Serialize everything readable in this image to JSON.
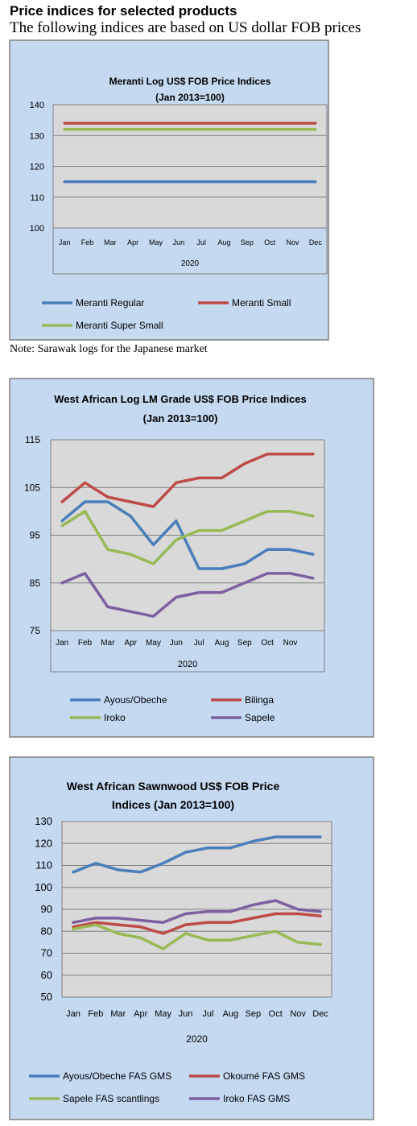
{
  "page": {
    "heading": "Price indices for selected products",
    "subheading": "The following indices are based on US dollar FOB prices",
    "note": "Note: Sarawak logs for the Japanese market"
  },
  "chart_data": [
    {
      "type": "line",
      "title": "Meranti Log US$ FOB Price Indices",
      "subtitle": "(Jan 2013=100)",
      "xlabel": "2020",
      "ylabel": "",
      "categories": [
        "Jan",
        "Feb",
        "Mar",
        "Apr",
        "May",
        "Jun",
        "Jul",
        "Aug",
        "Sep",
        "Oct",
        "Nov",
        "Dec"
      ],
      "ylim": [
        100,
        140
      ],
      "yticks": [
        100,
        110,
        120,
        130,
        140
      ],
      "grid": true,
      "legend": "bottom",
      "series": [
        {
          "name": "Meranti Regular",
          "color": "#4a7ebb",
          "values": [
            115,
            115,
            115,
            115,
            115,
            115,
            115,
            115,
            115,
            115,
            115,
            115
          ]
        },
        {
          "name": "Meranti Small",
          "color": "#be4b48",
          "values": [
            134,
            134,
            134,
            134,
            134,
            134,
            134,
            134,
            134,
            134,
            134,
            134
          ]
        },
        {
          "name": "Meranti Super Small",
          "color": "#98b954",
          "values": [
            132,
            132,
            132,
            132,
            132,
            132,
            132,
            132,
            132,
            132,
            132,
            132
          ]
        }
      ]
    },
    {
      "type": "line",
      "title": "West African Log LM Grade US$ FOB Price Indices",
      "subtitle": "(Jan 2013=100)",
      "xlabel": "2020",
      "ylabel": "",
      "categories": [
        "Jan",
        "Feb",
        "Mar",
        "Apr",
        "May",
        "Jun",
        "Jul",
        "Aug",
        "Sep",
        "Oct",
        "Nov",
        ""
      ],
      "ylim": [
        75,
        115
      ],
      "yticks": [
        75,
        85,
        95,
        105,
        115
      ],
      "grid": true,
      "legend": "bottom",
      "series": [
        {
          "name": "Ayous/Obeche",
          "color": "#4a7ebb",
          "values": [
            98,
            102,
            102,
            99,
            93,
            98,
            88,
            88,
            89,
            92,
            92,
            91
          ]
        },
        {
          "name": "Bilinga",
          "color": "#be4b48",
          "values": [
            102,
            106,
            103,
            102,
            101,
            106,
            107,
            107,
            110,
            112,
            112,
            112
          ]
        },
        {
          "name": "Iroko",
          "color": "#98b954",
          "values": [
            97,
            100,
            92,
            91,
            89,
            94,
            96,
            96,
            98,
            100,
            100,
            99
          ]
        },
        {
          "name": "Sapele",
          "color": "#7d60a0",
          "values": [
            85,
            87,
            80,
            79,
            78,
            82,
            83,
            83,
            85,
            87,
            87,
            86
          ]
        }
      ]
    },
    {
      "type": "line",
      "title": "West African Sawnwood US$ FOB Price",
      "subtitle": "Indices (Jan 2013=100)",
      "xlabel": "2020",
      "ylabel": "",
      "categories": [
        "Jan",
        "Feb",
        "Mar",
        "Apr",
        "May",
        "Jun",
        "Jul",
        "Aug",
        "Sep",
        "Oct",
        "Nov",
        "Dec"
      ],
      "ylim": [
        50,
        130
      ],
      "yticks": [
        50,
        60,
        70,
        80,
        90,
        100,
        110,
        120,
        130
      ],
      "grid": true,
      "legend": "bottom",
      "series": [
        {
          "name": "Ayous/Obeche FAS GMS",
          "color": "#4a7ebb",
          "values": [
            107,
            111,
            108,
            107,
            111,
            116,
            118,
            118,
            121,
            123,
            123,
            123
          ]
        },
        {
          "name": "Okoumé FAS GMS",
          "color": "#be4b48",
          "values": [
            82,
            84,
            83,
            82,
            79,
            83,
            84,
            84,
            86,
            88,
            88,
            87
          ]
        },
        {
          "name": "Sapele FAS scantlings",
          "color": "#98b954",
          "values": [
            81,
            83,
            79,
            77,
            72,
            79,
            76,
            76,
            78,
            80,
            75,
            74
          ]
        },
        {
          "name": "Iroko FAS GMS",
          "color": "#7d60a0",
          "values": [
            84,
            86,
            86,
            85,
            84,
            88,
            89,
            89,
            92,
            94,
            90,
            89
          ]
        }
      ]
    }
  ]
}
